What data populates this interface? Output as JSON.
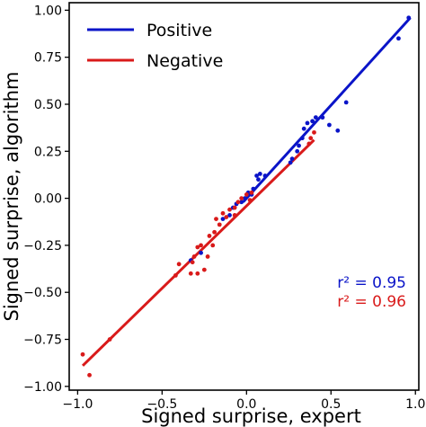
{
  "chart_data": {
    "type": "scatter",
    "xlabel": "Signed surprise, expert",
    "ylabel": "Signed surprise, algorithm",
    "xlim": [
      -1.05,
      1.02
    ],
    "ylim": [
      -1.02,
      1.04
    ],
    "xticks": [
      -1.0,
      -0.5,
      0.0,
      0.5,
      1.0
    ],
    "xtick_labels": [
      "−1.0",
      "−0.5",
      "0.0",
      "0.5",
      "1.0"
    ],
    "yticks": [
      -1.0,
      -0.75,
      -0.5,
      -0.25,
      0.0,
      0.25,
      0.5,
      0.75,
      1.0
    ],
    "ytick_labels": [
      "−1.00",
      "−0.75",
      "−0.50",
      "−0.25",
      "0.00",
      "0.25",
      "0.50",
      "0.75",
      "1.00"
    ],
    "grid": false,
    "legend": {
      "placement": "top-left",
      "entries": [
        {
          "label": "Positive",
          "color": "#0a14c8"
        },
        {
          "label": "Negative",
          "color": "#d91a1a"
        }
      ]
    },
    "series": [
      {
        "name": "Positive",
        "color": "#0a14c8",
        "fit_line": {
          "x": [
            -0.02,
            0.97
          ],
          "y": [
            -0.02,
            0.96
          ]
        },
        "points": [
          {
            "x": 0.9,
            "y": 0.85
          },
          {
            "x": 0.96,
            "y": 0.96
          },
          {
            "x": 0.59,
            "y": 0.51
          },
          {
            "x": 0.54,
            "y": 0.36
          },
          {
            "x": 0.49,
            "y": 0.39
          },
          {
            "x": 0.45,
            "y": 0.43
          },
          {
            "x": 0.41,
            "y": 0.43
          },
          {
            "x": 0.39,
            "y": 0.41
          },
          {
            "x": 0.36,
            "y": 0.4
          },
          {
            "x": 0.34,
            "y": 0.37
          },
          {
            "x": 0.33,
            "y": 0.32
          },
          {
            "x": 0.31,
            "y": 0.28
          },
          {
            "x": 0.3,
            "y": 0.25
          },
          {
            "x": 0.27,
            "y": 0.21
          },
          {
            "x": 0.26,
            "y": 0.19
          },
          {
            "x": 0.11,
            "y": 0.12
          },
          {
            "x": 0.08,
            "y": 0.13
          },
          {
            "x": 0.07,
            "y": 0.1
          },
          {
            "x": 0.06,
            "y": 0.12
          },
          {
            "x": 0.04,
            "y": 0.05
          },
          {
            "x": 0.03,
            "y": 0.02
          },
          {
            "x": 0.01,
            "y": 0.03
          },
          {
            "x": -0.01,
            "y": 0.0
          },
          {
            "x": -0.03,
            "y": -0.02
          },
          {
            "x": -0.06,
            "y": -0.03
          },
          {
            "x": -0.08,
            "y": -0.05
          },
          {
            "x": -0.1,
            "y": -0.09
          },
          {
            "x": -0.14,
            "y": -0.11
          },
          {
            "x": -0.33,
            "y": -0.33
          },
          {
            "x": -0.27,
            "y": -0.29
          }
        ]
      },
      {
        "name": "Negative",
        "color": "#d91a1a",
        "fit_line": {
          "x": [
            -0.97,
            0.4
          ],
          "y": [
            -0.89,
            0.31
          ]
        },
        "points": [
          {
            "x": -0.97,
            "y": -0.83
          },
          {
            "x": -0.93,
            "y": -0.94
          },
          {
            "x": -0.81,
            "y": -0.75
          },
          {
            "x": -0.42,
            "y": -0.41
          },
          {
            "x": -0.4,
            "y": -0.35
          },
          {
            "x": -0.33,
            "y": -0.4
          },
          {
            "x": -0.32,
            "y": -0.34
          },
          {
            "x": -0.31,
            "y": -0.31
          },
          {
            "x": -0.29,
            "y": -0.26
          },
          {
            "x": -0.29,
            "y": -0.4
          },
          {
            "x": -0.27,
            "y": -0.25
          },
          {
            "x": -0.25,
            "y": -0.38
          },
          {
            "x": -0.23,
            "y": -0.31
          },
          {
            "x": -0.2,
            "y": -0.25
          },
          {
            "x": -0.19,
            "y": -0.18
          },
          {
            "x": -0.18,
            "y": -0.11
          },
          {
            "x": -0.16,
            "y": -0.14
          },
          {
            "x": -0.14,
            "y": -0.08
          },
          {
            "x": -0.12,
            "y": -0.1
          },
          {
            "x": -0.1,
            "y": -0.06
          },
          {
            "x": -0.07,
            "y": -0.05
          },
          {
            "x": -0.05,
            "y": -0.02
          },
          {
            "x": -0.03,
            "y": 0.0
          },
          {
            "x": 0.0,
            "y": 0.02
          },
          {
            "x": 0.02,
            "y": -0.01
          },
          {
            "x": 0.03,
            "y": 0.03
          },
          {
            "x": 0.4,
            "y": 0.35
          },
          {
            "x": 0.38,
            "y": 0.32
          },
          {
            "x": 0.37,
            "y": 0.29
          },
          {
            "x": -0.07,
            "y": -0.09
          },
          {
            "x": -0.22,
            "y": -0.2
          }
        ]
      }
    ],
    "annotations": [
      {
        "text": "r² = 0.95",
        "color": "#0a14c8"
      },
      {
        "text": "r² = 0.96",
        "color": "#d91a1a"
      }
    ]
  }
}
